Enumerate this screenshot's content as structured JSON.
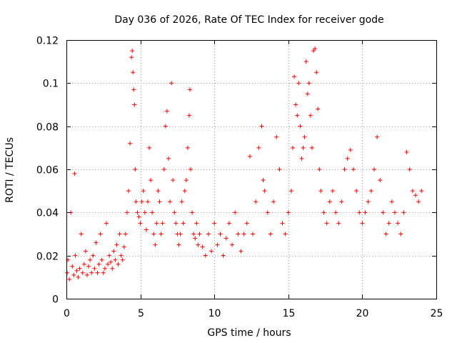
{
  "chart_data": {
    "type": "scatter",
    "title": "Day 036 of 2026, Rate Of TEC Index for receiver gode",
    "xlabel": "GPS time / hours",
    "ylabel": "ROTI / TECUs",
    "xlim": [
      0,
      25
    ],
    "ylim": [
      0,
      0.12
    ],
    "xticks": [
      0,
      5,
      10,
      15,
      20,
      25
    ],
    "xtick_labels": [
      "0",
      "5",
      "10",
      "15",
      "20",
      "25"
    ],
    "yticks": [
      0,
      0.02,
      0.04,
      0.06,
      0.08,
      0.1,
      0.12
    ],
    "ytick_labels": [
      "0",
      "0.02",
      "0.04",
      "0.06",
      "0.08",
      "0.1",
      "0.12"
    ],
    "grid": true,
    "marker": "+",
    "series": [
      {
        "name": "ROTI",
        "color": "#ff0000",
        "x": [
          0.05,
          0.1,
          0.2,
          0.3,
          0.4,
          0.5,
          0.55,
          0.6,
          0.7,
          0.8,
          0.9,
          1.0,
          1.1,
          1.2,
          1.3,
          1.4,
          1.5,
          1.6,
          1.7,
          1.8,
          1.9,
          2.0,
          2.1,
          2.2,
          2.3,
          2.4,
          2.5,
          2.6,
          2.7,
          2.8,
          2.9,
          3.0,
          3.1,
          3.2,
          3.3,
          3.4,
          3.5,
          3.6,
          3.7,
          3.8,
          3.9,
          4.0,
          4.1,
          4.2,
          4.3,
          4.4,
          4.45,
          4.5,
          4.55,
          4.6,
          4.65,
          4.7,
          4.8,
          4.9,
          5.0,
          5.1,
          5.2,
          5.3,
          5.4,
          5.5,
          5.6,
          5.7,
          5.8,
          5.9,
          6.0,
          6.1,
          6.2,
          6.3,
          6.4,
          6.5,
          6.6,
          6.7,
          6.8,
          6.9,
          7.0,
          7.1,
          7.2,
          7.3,
          7.4,
          7.5,
          7.6,
          7.7,
          7.8,
          7.9,
          8.0,
          8.1,
          8.2,
          8.3,
          8.35,
          8.4,
          8.5,
          8.6,
          8.7,
          8.8,
          8.9,
          9.0,
          9.2,
          9.4,
          9.6,
          9.8,
          10.0,
          10.2,
          10.4,
          10.6,
          10.8,
          11.0,
          11.2,
          11.4,
          11.6,
          11.8,
          12.0,
          12.2,
          12.4,
          12.6,
          12.8,
          13.0,
          13.2,
          13.3,
          13.4,
          13.6,
          13.8,
          14.0,
          14.2,
          14.4,
          14.6,
          14.8,
          15.0,
          15.2,
          15.3,
          15.4,
          15.5,
          15.6,
          15.7,
          15.8,
          15.9,
          16.0,
          16.1,
          16.2,
          16.3,
          16.4,
          16.5,
          16.6,
          16.7,
          16.8,
          16.9,
          17.0,
          17.1,
          17.2,
          17.4,
          17.6,
          17.8,
          18.0,
          18.2,
          18.4,
          18.6,
          18.8,
          19.0,
          19.2,
          19.4,
          19.6,
          19.8,
          20.0,
          20.2,
          20.4,
          20.6,
          20.8,
          21.0,
          21.2,
          21.4,
          21.6,
          21.8,
          22.0,
          22.2,
          22.4,
          22.6,
          22.8,
          23.0,
          23.2,
          23.4,
          23.6,
          23.8,
          24.0
        ],
        "y": [
          0.012,
          0.018,
          0.009,
          0.04,
          0.015,
          0.011,
          0.058,
          0.02,
          0.013,
          0.01,
          0.014,
          0.03,
          0.012,
          0.016,
          0.022,
          0.011,
          0.015,
          0.018,
          0.012,
          0.02,
          0.014,
          0.026,
          0.012,
          0.016,
          0.03,
          0.018,
          0.012,
          0.014,
          0.035,
          0.016,
          0.02,
          0.017,
          0.014,
          0.022,
          0.018,
          0.025,
          0.016,
          0.03,
          0.02,
          0.018,
          0.024,
          0.03,
          0.04,
          0.05,
          0.072,
          0.112,
          0.115,
          0.105,
          0.097,
          0.09,
          0.06,
          0.045,
          0.04,
          0.038,
          0.035,
          0.045,
          0.05,
          0.04,
          0.032,
          0.045,
          0.07,
          0.055,
          0.04,
          0.03,
          0.025,
          0.035,
          0.05,
          0.045,
          0.03,
          0.035,
          0.06,
          0.08,
          0.087,
          0.065,
          0.045,
          0.1,
          0.055,
          0.04,
          0.035,
          0.03,
          0.025,
          0.03,
          0.045,
          0.035,
          0.05,
          0.055,
          0.07,
          0.085,
          0.097,
          0.06,
          0.04,
          0.03,
          0.028,
          0.035,
          0.025,
          0.03,
          0.024,
          0.02,
          0.03,
          0.022,
          0.035,
          0.025,
          0.03,
          0.02,
          0.028,
          0.035,
          0.025,
          0.04,
          0.03,
          0.022,
          0.03,
          0.035,
          0.066,
          0.03,
          0.045,
          0.07,
          0.08,
          0.055,
          0.05,
          0.04,
          0.03,
          0.045,
          0.075,
          0.06,
          0.035,
          0.03,
          0.04,
          0.05,
          0.07,
          0.103,
          0.09,
          0.085,
          0.1,
          0.08,
          0.065,
          0.07,
          0.075,
          0.11,
          0.095,
          0.1,
          0.085,
          0.07,
          0.115,
          0.116,
          0.105,
          0.088,
          0.06,
          0.05,
          0.04,
          0.035,
          0.045,
          0.05,
          0.04,
          0.035,
          0.045,
          0.06,
          0.065,
          0.069,
          0.06,
          0.05,
          0.04,
          0.035,
          0.04,
          0.045,
          0.05,
          0.06,
          0.075,
          0.055,
          0.04,
          0.03,
          0.035,
          0.045,
          0.04,
          0.035,
          0.03,
          0.04,
          0.068,
          0.06,
          0.05,
          0.048,
          0.045,
          0.05
        ]
      }
    ]
  }
}
